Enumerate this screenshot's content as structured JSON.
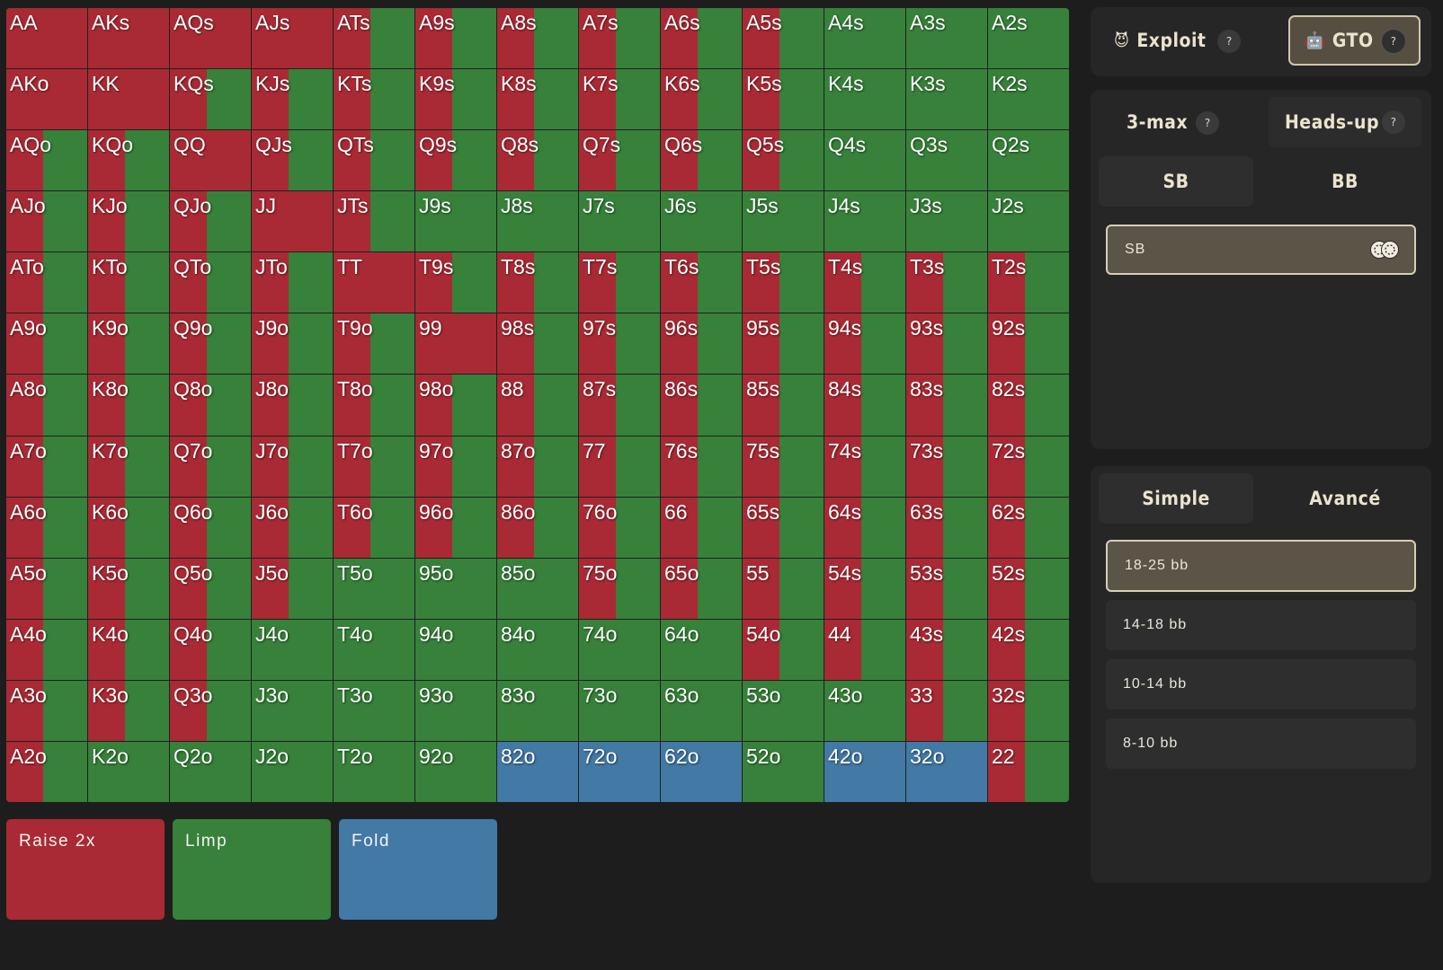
{
  "colors": {
    "raise": "#a92a34",
    "limp": "#37813a",
    "fold": "#4279a5"
  },
  "grid": {
    "rows": [
      [
        "AA",
        "AKs",
        "AQs",
        "AJs",
        "ATs",
        "A9s",
        "A8s",
        "A7s",
        "A6s",
        "A5s",
        "A4s",
        "A3s",
        "A2s"
      ],
      [
        "AKo",
        "KK",
        "KQs",
        "KJs",
        "KTs",
        "K9s",
        "K8s",
        "K7s",
        "K6s",
        "K5s",
        "K4s",
        "K3s",
        "K2s"
      ],
      [
        "AQo",
        "KQo",
        "QQ",
        "QJs",
        "QTs",
        "Q9s",
        "Q8s",
        "Q7s",
        "Q6s",
        "Q5s",
        "Q4s",
        "Q3s",
        "Q2s"
      ],
      [
        "AJo",
        "KJo",
        "QJo",
        "JJ",
        "JTs",
        "J9s",
        "J8s",
        "J7s",
        "J6s",
        "J5s",
        "J4s",
        "J3s",
        "J2s"
      ],
      [
        "ATo",
        "KTo",
        "QTo",
        "JTo",
        "TT",
        "T9s",
        "T8s",
        "T7s",
        "T6s",
        "T5s",
        "T4s",
        "T3s",
        "T2s"
      ],
      [
        "A9o",
        "K9o",
        "Q9o",
        "J9o",
        "T9o",
        "99",
        "98s",
        "97s",
        "96s",
        "95s",
        "94s",
        "93s",
        "92s"
      ],
      [
        "A8o",
        "K8o",
        "Q8o",
        "J8o",
        "T8o",
        "98o",
        "88",
        "87s",
        "86s",
        "85s",
        "84s",
        "83s",
        "82s"
      ],
      [
        "A7o",
        "K7o",
        "Q7o",
        "J7o",
        "T7o",
        "97o",
        "87o",
        "77",
        "76s",
        "75s",
        "74s",
        "73s",
        "72s"
      ],
      [
        "A6o",
        "K6o",
        "Q6o",
        "J6o",
        "T6o",
        "96o",
        "86o",
        "76o",
        "66",
        "65s",
        "64s",
        "63s",
        "62s"
      ],
      [
        "A5o",
        "K5o",
        "Q5o",
        "J5o",
        "T5o",
        "95o",
        "85o",
        "75o",
        "65o",
        "55",
        "54s",
        "53s",
        "52s"
      ],
      [
        "A4o",
        "K4o",
        "Q4o",
        "J4o",
        "T4o",
        "94o",
        "84o",
        "74o",
        "64o",
        "54o",
        "44",
        "43s",
        "42s"
      ],
      [
        "A3o",
        "K3o",
        "Q3o",
        "J3o",
        "T3o",
        "93o",
        "83o",
        "73o",
        "63o",
        "53o",
        "43o",
        "33",
        "32s"
      ],
      [
        "A2o",
        "K2o",
        "Q2o",
        "J2o",
        "T2o",
        "92o",
        "82o",
        "72o",
        "62o",
        "52o",
        "42o",
        "32o",
        "22"
      ]
    ],
    "raise_fraction": [
      [
        1,
        1,
        1,
        1,
        0.45,
        0.45,
        0.45,
        0.45,
        0.45,
        0.45,
        0,
        0,
        0
      ],
      [
        1,
        1,
        0.45,
        0.45,
        0.45,
        0.45,
        0.45,
        0.45,
        0.45,
        0.45,
        0,
        0,
        0
      ],
      [
        0.45,
        0.45,
        1,
        0.45,
        0.45,
        0.45,
        0.45,
        0.45,
        0.45,
        0.45,
        0,
        0,
        0
      ],
      [
        0.45,
        0.45,
        0.45,
        1,
        0.45,
        0,
        0,
        0,
        0,
        0,
        0,
        0,
        0
      ],
      [
        0.45,
        0.45,
        0.45,
        0.45,
        1,
        0.45,
        0.45,
        0.45,
        0.45,
        0.45,
        0.45,
        0.45,
        0.45
      ],
      [
        0.45,
        0.45,
        0.45,
        0.45,
        0.45,
        1,
        0.45,
        0.45,
        0.45,
        0.45,
        0.45,
        0.45,
        0.45
      ],
      [
        0.45,
        0.45,
        0.45,
        0.45,
        0.45,
        0.45,
        0.45,
        0.45,
        0.45,
        0.45,
        0.45,
        0.45,
        0.45
      ],
      [
        0.45,
        0.45,
        0.45,
        0.45,
        0.45,
        0.45,
        0.45,
        0.45,
        0.45,
        0.45,
        0.45,
        0.45,
        0.45
      ],
      [
        0.45,
        0.45,
        0.45,
        0.45,
        0.45,
        0.45,
        0.45,
        0.45,
        0.45,
        0.45,
        0.45,
        0.45,
        0.45
      ],
      [
        0.45,
        0.45,
        0.45,
        0.45,
        0,
        0,
        0,
        0.45,
        0.45,
        0.45,
        0.45,
        0.45,
        0.45
      ],
      [
        0.45,
        0.45,
        0.45,
        0,
        0,
        0,
        0,
        0,
        0,
        0.45,
        0.45,
        0.45,
        0.45
      ],
      [
        0.45,
        0.45,
        0.45,
        0,
        0,
        0,
        0,
        0,
        0,
        0,
        0,
        0.45,
        0.45
      ],
      [
        0.45,
        0,
        0,
        0,
        0,
        0,
        0,
        0,
        0,
        0,
        0,
        0,
        0.45
      ]
    ],
    "fold_hands": [
      "82o",
      "72o",
      "62o",
      "42o",
      "32o"
    ]
  },
  "legend": [
    {
      "label": "Raise 2x",
      "action": "raise"
    },
    {
      "label": "Limp",
      "action": "limp"
    },
    {
      "label": "Fold",
      "action": "fold"
    }
  ],
  "mode": {
    "exploit": {
      "label": "Exploit",
      "icon": "devil-icon"
    },
    "gto": {
      "label": "GTO",
      "icon": "robot-icon",
      "selected": true
    },
    "help_label": "?"
  },
  "format": {
    "three_max": "3-max",
    "heads_up": "Heads-up",
    "help_label": "?",
    "positions": {
      "sb": "SB",
      "bb": "BB",
      "selected": "SB"
    },
    "position_field": "SB",
    "chips_icon": "poker-chips-icon"
  },
  "depth": {
    "simple": "Simple",
    "advanced": "Avancé",
    "stacks": [
      "18-25 bb",
      "14-18 bb",
      "10-14 bb",
      "8-10 bb"
    ],
    "selected_stack": "18-25 bb"
  }
}
